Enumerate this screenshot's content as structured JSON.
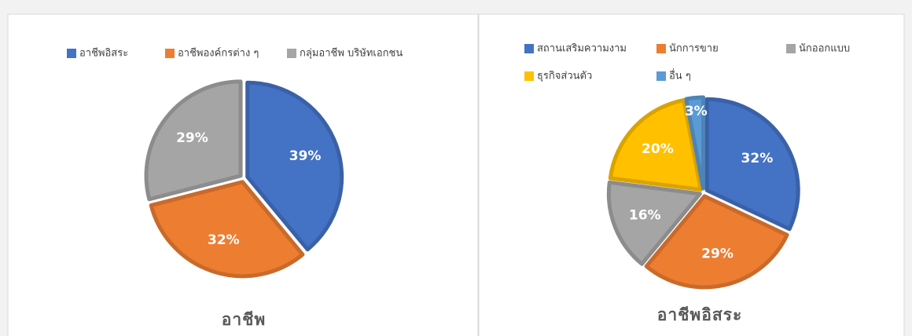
{
  "chart_data": [
    {
      "type": "pie",
      "title": "อาชีพ",
      "categories": [
        "อาชีพอิสระ",
        "อาชีพองค์กรต่าง ๆ",
        "กลุ่มอาชีพ บริษัทเอกชน"
      ],
      "values": [
        39,
        32,
        29
      ],
      "value_labels": [
        "39%",
        "32%",
        "29%"
      ],
      "colors": [
        "#4472c4",
        "#ed7d31",
        "#a5a5a5"
      ]
    },
    {
      "type": "pie",
      "title": "อาชีพอิสระ",
      "categories": [
        "สถานเสริมความงาม",
        "นักการขาย",
        "นักออกแบบ",
        "ธุรกิจส่วนตัว",
        "อื่น ๆ"
      ],
      "values": [
        32,
        29,
        16,
        20,
        3
      ],
      "value_labels": [
        "32%",
        "29%",
        "16%",
        "20%",
        "3%"
      ],
      "colors": [
        "#4472c4",
        "#ed7d31",
        "#a5a5a5",
        "#ffc000",
        "#5b9bd5"
      ]
    }
  ]
}
